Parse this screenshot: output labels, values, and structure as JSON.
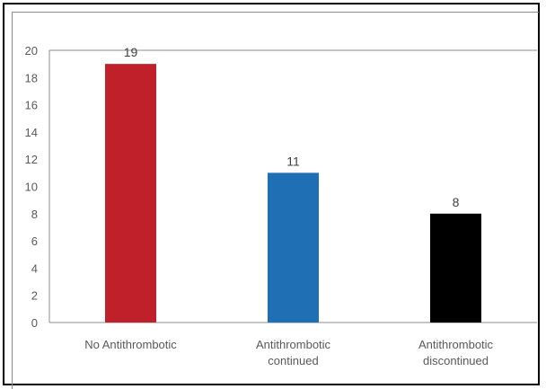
{
  "chart_data": {
    "type": "bar",
    "categories": [
      [
        "No Antithrombotic"
      ],
      [
        "Antithrombotic",
        "continued"
      ],
      [
        "Antithrombotic",
        "discontinued"
      ]
    ],
    "values": [
      19,
      11,
      8
    ],
    "colors": [
      "#c0202a",
      "#1f6fb4",
      "#000000"
    ],
    "ylim": [
      0,
      20
    ],
    "yticks": [
      0,
      2,
      4,
      6,
      8,
      10,
      12,
      14,
      16,
      18,
      20
    ],
    "grid": false,
    "legend": "none",
    "title": "",
    "xlabel": "",
    "ylabel": ""
  }
}
